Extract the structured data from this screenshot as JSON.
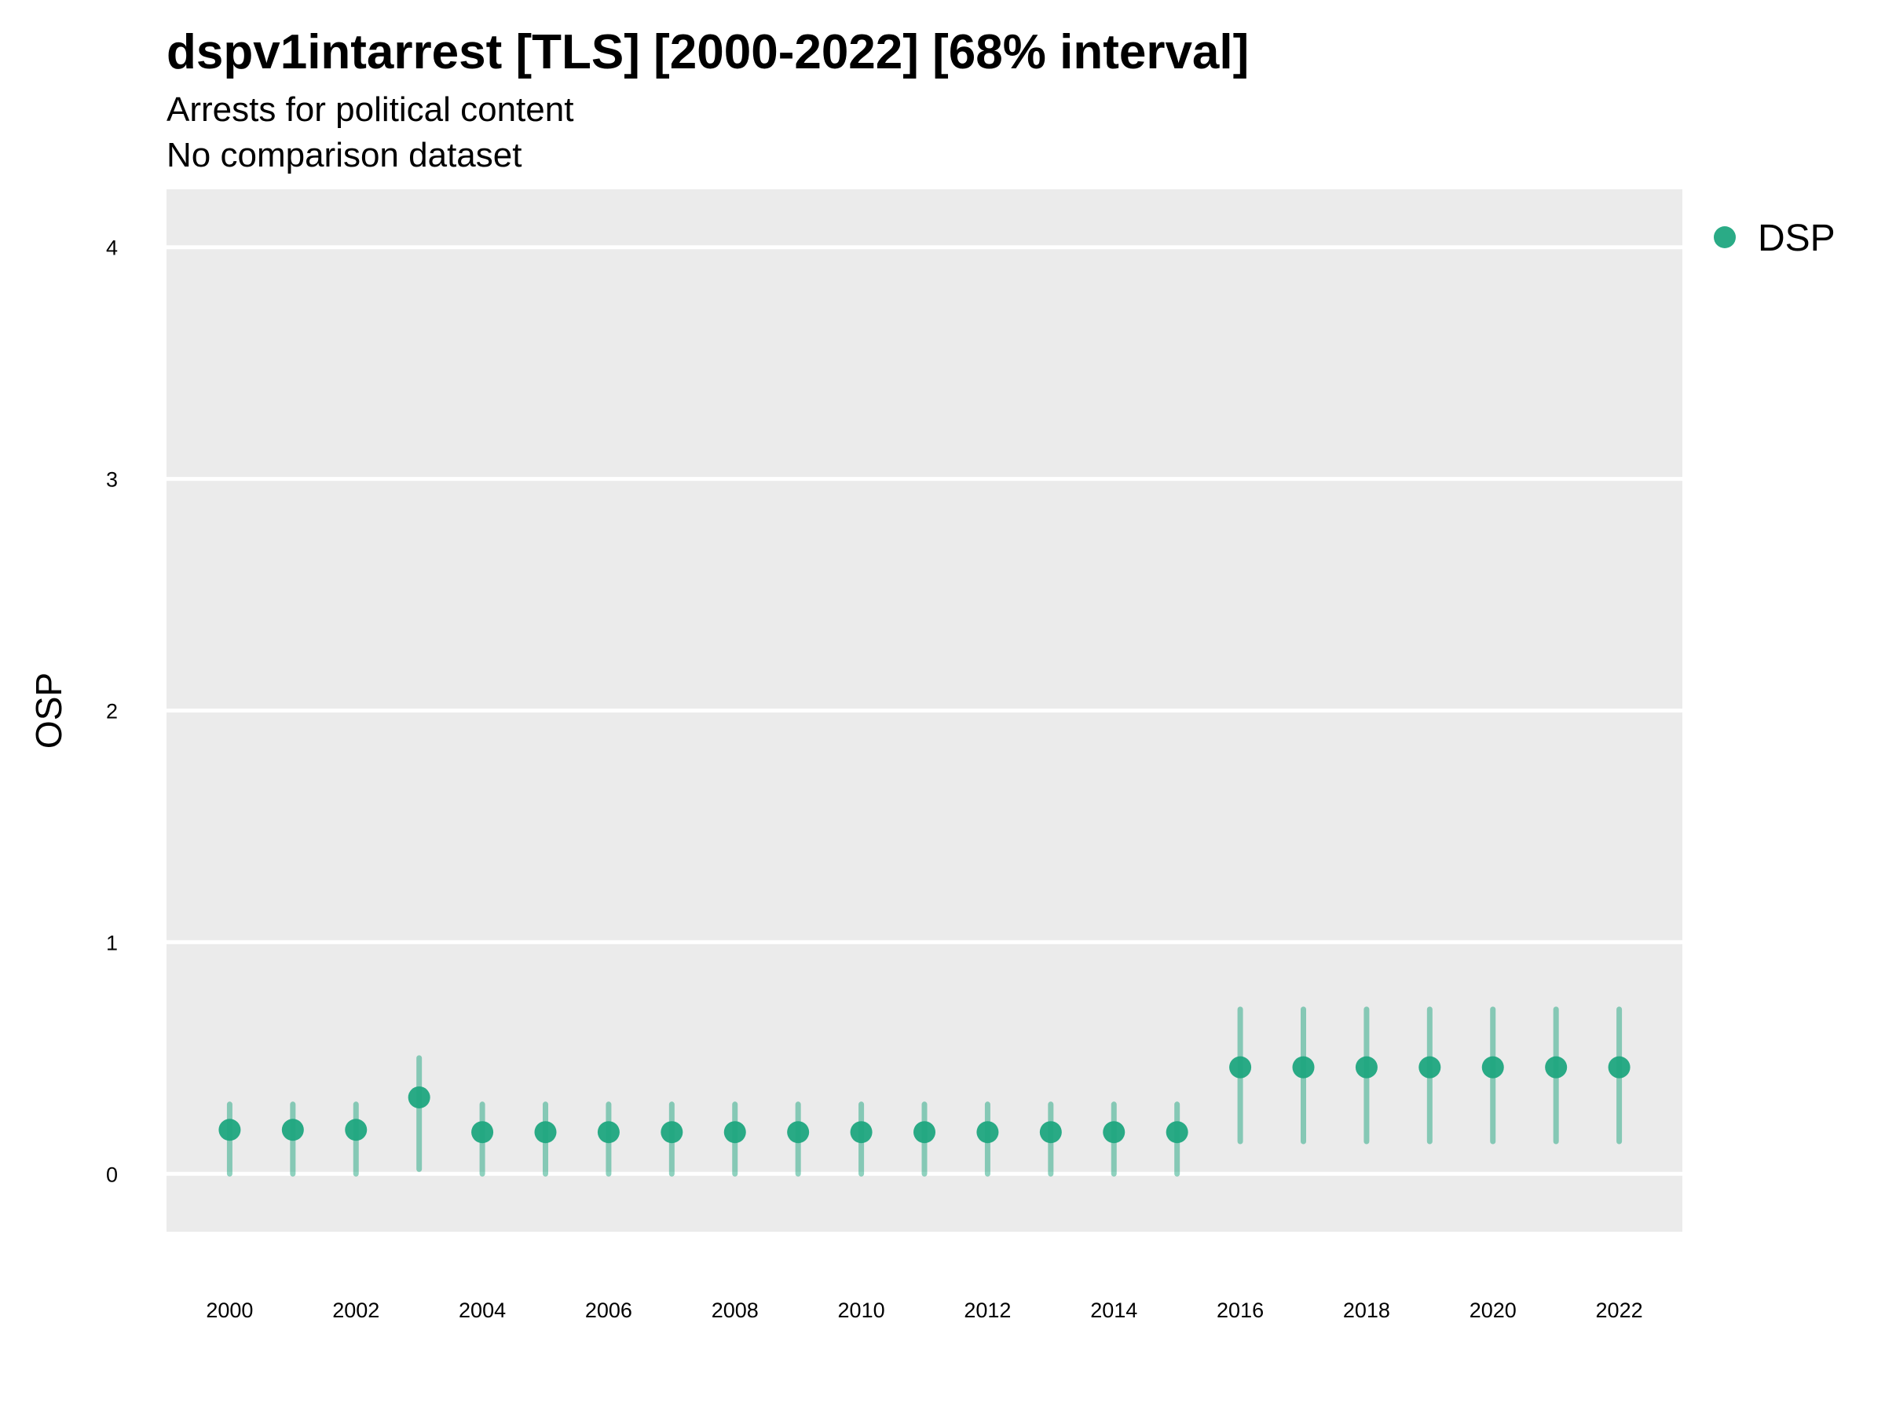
{
  "chart_data": {
    "type": "scatter",
    "title": "dspv1intarrest [TLS] [2000-2022] [68% interval]",
    "subtitle": [
      "Arrests for political content",
      "No comparison dataset"
    ],
    "xlabel": "",
    "ylabel": "OSP",
    "ylim": [
      -0.25,
      4.25
    ],
    "yticks": [
      0,
      1,
      2,
      3,
      4
    ],
    "xlim": [
      1999,
      2023
    ],
    "xticks": [
      2000,
      2002,
      2004,
      2006,
      2008,
      2010,
      2012,
      2014,
      2016,
      2018,
      2020,
      2022
    ],
    "grid": true,
    "legend": {
      "position": "right",
      "entries": [
        "DSP"
      ]
    },
    "colors": {
      "series": "#1fa67f",
      "panel": "#ebebeb",
      "grid": "#ffffff"
    },
    "series": [
      {
        "name": "DSP",
        "x": [
          2000,
          2001,
          2002,
          2003,
          2004,
          2005,
          2006,
          2007,
          2008,
          2009,
          2010,
          2011,
          2012,
          2013,
          2014,
          2015,
          2016,
          2017,
          2018,
          2019,
          2020,
          2021,
          2022
        ],
        "y": [
          0.19,
          0.19,
          0.19,
          0.33,
          0.18,
          0.18,
          0.18,
          0.18,
          0.18,
          0.18,
          0.18,
          0.18,
          0.18,
          0.18,
          0.18,
          0.18,
          0.46,
          0.46,
          0.46,
          0.46,
          0.46,
          0.46,
          0.46
        ],
        "lower": [
          0.0,
          0.0,
          0.0,
          0.02,
          0.0,
          0.0,
          0.0,
          0.0,
          0.0,
          0.0,
          0.0,
          0.0,
          0.0,
          0.0,
          0.0,
          0.0,
          0.14,
          0.14,
          0.14,
          0.14,
          0.14,
          0.14,
          0.14
        ],
        "upper": [
          0.3,
          0.3,
          0.3,
          0.5,
          0.3,
          0.3,
          0.3,
          0.3,
          0.3,
          0.3,
          0.3,
          0.3,
          0.3,
          0.3,
          0.3,
          0.3,
          0.71,
          0.71,
          0.71,
          0.71,
          0.71,
          0.71,
          0.71
        ]
      }
    ]
  }
}
